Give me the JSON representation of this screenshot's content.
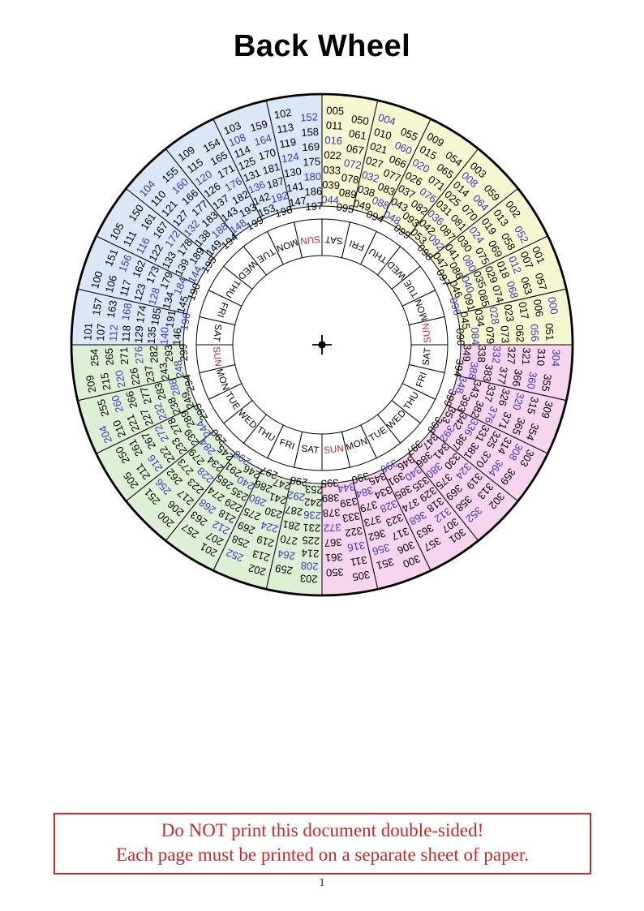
{
  "page": {
    "title": "Back Wheel",
    "warning": {
      "line1": "Do NOT print this document double-sided!",
      "line2": "Each page must be printed on a separate sheet of paper."
    },
    "footer_page_number": "1"
  },
  "colors": {
    "quadrant_fills": {
      "years_000s": "#f6f6d0",
      "years_100s": "#d9e7f6",
      "years_200s": "#ddf0d6",
      "years_300s": "#f7d5ef"
    },
    "number_regular": "#000000",
    "number_leap_highlight": "#3939bb",
    "day_regular": "#000000",
    "day_sunday": "#cc2222",
    "warning_red": "#c32a2a",
    "wheel_stroke": "#000000"
  },
  "wheel": {
    "day_cells_note": "one weekday cell per sector, text oriented toward center, SUN drawn red",
    "sectors": [
      {
        "day": "SAT",
        "fill_key": "years_000s",
        "col1": [
          "005",
          "011",
          "016",
          "022",
          "033",
          "039",
          "044"
        ],
        "col2": [
          "050",
          "061",
          "067",
          "072",
          "078",
          "089",
          "095"
        ]
      },
      {
        "day": "FRI",
        "fill_key": "years_000s",
        "col1": [
          "004",
          "010",
          "021",
          "027",
          "032",
          "038",
          "049"
        ],
        "col2": [
          "055",
          "060",
          "066",
          "077",
          "083",
          "088",
          "094"
        ]
      },
      {
        "day": "THU",
        "fill_key": "years_000s",
        "col1": [
          "009",
          "015",
          "020",
          "026",
          "037",
          "043",
          "048"
        ],
        "col2": [
          "054",
          "065",
          "071",
          "076",
          "082",
          "093",
          "099"
        ]
      },
      {
        "day": "WED",
        "fill_key": "years_000s",
        "col1": [
          "003",
          "008",
          "014",
          "025",
          "031",
          "036",
          "042",
          "053"
        ],
        "col2": [
          "059",
          "064",
          "070",
          "081",
          "087",
          "092",
          "098"
        ]
      },
      {
        "day": "TUE",
        "fill_key": "years_000s",
        "col1": [
          "002",
          "013",
          "019",
          "024",
          "030",
          "041",
          "047"
        ],
        "col2": [
          "052",
          "058",
          "069",
          "075",
          "080",
          "086",
          "097"
        ]
      },
      {
        "day": "MON",
        "fill_key": "years_000s",
        "col1": [
          "001",
          "007",
          "012",
          "018",
          "029",
          "035",
          "040",
          "046"
        ],
        "col2": [
          "057",
          "063",
          "068",
          "074",
          "085",
          "091",
          "096"
        ]
      },
      {
        "day": "SUN",
        "fill_key": "years_000s",
        "col1": [
          "000",
          "006",
          "017",
          "023",
          "028",
          "034",
          "045"
        ],
        "col2": [
          "051",
          "056",
          "062",
          "073",
          "079",
          "084",
          "090"
        ]
      },
      {
        "day": "SAT",
        "fill_key": "years_300s",
        "col1": [
          "304",
          "310",
          "321",
          "327",
          "332",
          "338",
          "349"
        ],
        "col2": [
          "355",
          "360",
          "366",
          "377",
          "383",
          "388",
          "394"
        ]
      },
      {
        "day": "FRI",
        "fill_key": "years_300s",
        "col1": [
          "309",
          "315",
          "320",
          "326",
          "337",
          "343",
          "348"
        ],
        "col2": [
          "354",
          "365",
          "371",
          "376",
          "382",
          "393",
          "399"
        ]
      },
      {
        "day": "THU",
        "fill_key": "years_300s",
        "col1": [
          "303",
          "308",
          "314",
          "325",
          "331",
          "336",
          "342",
          "353"
        ],
        "col2": [
          "359",
          "364",
          "370",
          "381",
          "387",
          "392",
          "398"
        ]
      },
      {
        "day": "WED",
        "fill_key": "years_300s",
        "col1": [
          "302",
          "313",
          "319",
          "324",
          "330",
          "341",
          "347"
        ],
        "col2": [
          "352",
          "358",
          "369",
          "375",
          "380",
          "386",
          "397"
        ]
      },
      {
        "day": "TUE",
        "fill_key": "years_300s",
        "col1": [
          "301",
          "307",
          "312",
          "318",
          "329",
          "335",
          "340",
          "346"
        ],
        "col2": [
          "357",
          "363",
          "368",
          "374",
          "385",
          "391",
          "396"
        ]
      },
      {
        "day": "MON",
        "fill_key": "years_300s",
        "col1": [
          "300",
          "306",
          "317",
          "323",
          "328",
          "334",
          "345"
        ],
        "col2": [
          "351",
          "356",
          "362",
          "373",
          "379",
          "384",
          "390"
        ]
      },
      {
        "day": "SUN",
        "fill_key": "years_300s",
        "col1": [
          "305",
          "311",
          "316",
          "322",
          "333",
          "339",
          "344"
        ],
        "col2": [
          "350",
          "361",
          "367",
          "372",
          "378",
          "389",
          "395"
        ]
      },
      {
        "day": "SAT",
        "fill_key": "years_200s",
        "col1": [
          "203",
          "208",
          "214",
          "225",
          "231",
          "236",
          "242",
          "253"
        ],
        "col2": [
          "259",
          "264",
          "270",
          "281",
          "287",
          "292",
          "298"
        ]
      },
      {
        "day": "FRI",
        "fill_key": "years_200s",
        "col1": [
          "202",
          "213",
          "219",
          "224",
          "230",
          "241",
          "247"
        ],
        "col2": [
          "252",
          "258",
          "269",
          "275",
          "280",
          "286",
          "297"
        ]
      },
      {
        "day": "THU",
        "fill_key": "years_200s",
        "col1": [
          "201",
          "207",
          "212",
          "218",
          "229",
          "235",
          "240",
          "246"
        ],
        "col2": [
          "257",
          "263",
          "268",
          "274",
          "285",
          "291",
          "296"
        ]
      },
      {
        "day": "WED",
        "fill_key": "years_200s",
        "col1": [
          "200",
          "206",
          "217",
          "223",
          "228",
          "234",
          "245"
        ],
        "col2": [
          "251",
          "256",
          "262",
          "273",
          "279",
          "284",
          "290"
        ]
      },
      {
        "day": "TUE",
        "fill_key": "years_200s",
        "col1": [
          "205",
          "211",
          "216",
          "222",
          "233",
          "239",
          "244"
        ],
        "col2": [
          "250",
          "261",
          "267",
          "272",
          "278",
          "289",
          "295"
        ]
      },
      {
        "day": "MON",
        "fill_key": "years_200s",
        "col1": [
          "204",
          "210",
          "221",
          "227",
          "232",
          "238",
          "249"
        ],
        "col2": [
          "255",
          "260",
          "266",
          "277",
          "283",
          "288",
          "294"
        ]
      },
      {
        "day": "SUN",
        "fill_key": "years_200s",
        "col1": [
          "209",
          "215",
          "220",
          "226",
          "237",
          "243",
          "248"
        ],
        "col2": [
          "254",
          "265",
          "271",
          "276",
          "282",
          "293",
          "299"
        ]
      },
      {
        "day": "SAT",
        "fill_key": "years_100s",
        "col1": [
          "101",
          "107",
          "112",
          "118",
          "129",
          "135",
          "140",
          "146"
        ],
        "col2": [
          "157",
          "163",
          "168",
          "174",
          "185",
          "191",
          "196"
        ]
      },
      {
        "day": "FRI",
        "fill_key": "years_100s",
        "col1": [
          "100",
          "106",
          "117",
          "123",
          "128",
          "134",
          "145"
        ],
        "col2": [
          "151",
          "156",
          "162",
          "173",
          "179",
          "184",
          "190"
        ]
      },
      {
        "day": "THU",
        "fill_key": "years_100s",
        "col1": [
          "105",
          "111",
          "116",
          "122",
          "133",
          "139",
          "144"
        ],
        "col2": [
          "150",
          "161",
          "167",
          "172",
          "178",
          "189",
          "195"
        ]
      },
      {
        "day": "WED",
        "fill_key": "years_100s",
        "col1": [
          "104",
          "110",
          "121",
          "127",
          "132",
          "138",
          "149"
        ],
        "col2": [
          "155",
          "160",
          "166",
          "177",
          "183",
          "188",
          "194"
        ]
      },
      {
        "day": "TUE",
        "fill_key": "years_100s",
        "col1": [
          "109",
          "115",
          "120",
          "126",
          "137",
          "143",
          "148"
        ],
        "col2": [
          "154",
          "165",
          "171",
          "176",
          "182",
          "193",
          "199"
        ]
      },
      {
        "day": "MON",
        "fill_key": "years_100s",
        "col1": [
          "103",
          "108",
          "114",
          "125",
          "131",
          "136",
          "142",
          "153"
        ],
        "col2": [
          "159",
          "164",
          "170",
          "181",
          "187",
          "192",
          "198"
        ]
      },
      {
        "day": "SUN",
        "fill_key": "years_100s",
        "col1": [
          "102",
          "113",
          "119",
          "124",
          "130",
          "141",
          "147"
        ],
        "col2": [
          "152",
          "158",
          "169",
          "175",
          "180",
          "186",
          "197"
        ]
      }
    ]
  }
}
